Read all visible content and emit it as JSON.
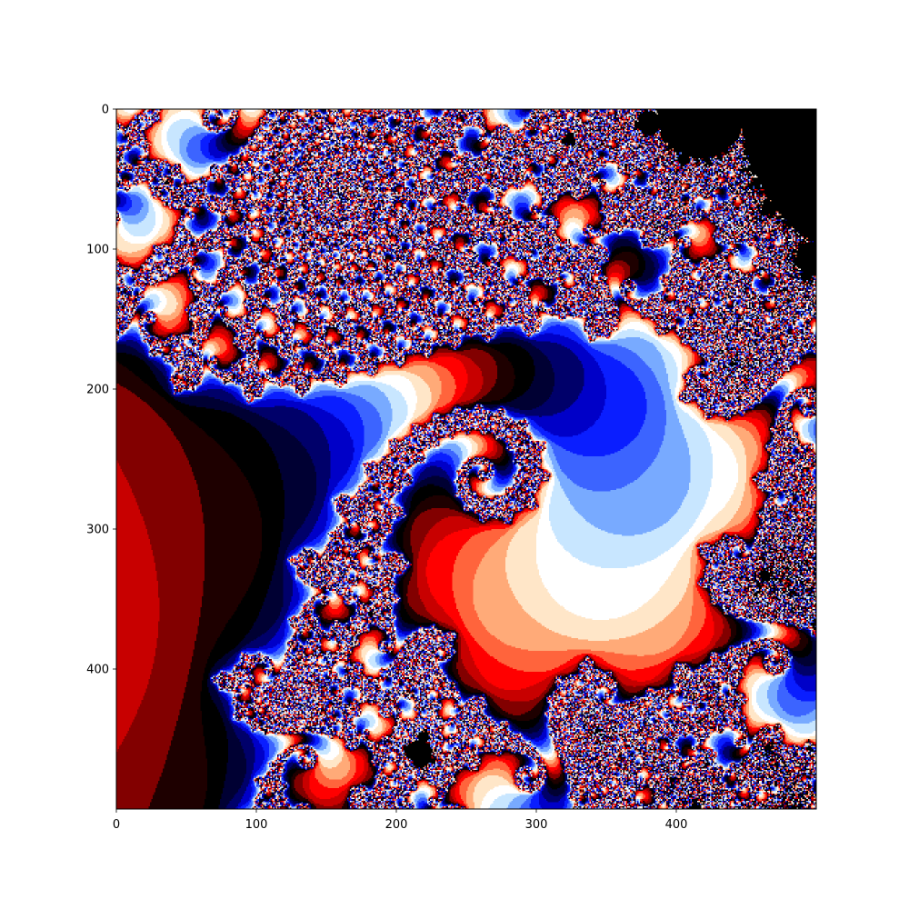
{
  "chart_data": {
    "type": "heatmap",
    "title": "",
    "xlabel": "",
    "ylabel": "",
    "xlim": [
      0,
      500
    ],
    "ylim": [
      500,
      0
    ],
    "x_ticks": [
      0,
      100,
      200,
      300,
      400
    ],
    "y_ticks": [
      0,
      100,
      200,
      300,
      400
    ],
    "x_tick_labels": [
      "0",
      "100",
      "200",
      "300",
      "400"
    ],
    "y_tick_labels": [
      "0",
      "100",
      "200",
      "300",
      "400"
    ],
    "grid": false,
    "image_size": [
      500,
      500
    ],
    "colormap": "seismic (banded)",
    "color_bands": [
      "#1e0000",
      "#000000",
      "#000033",
      "#00006a",
      "#0000c8",
      "#0a1eff",
      "#3c64ff",
      "#78aaff",
      "#c8e6ff",
      "#ffffff",
      "#ffe6c8",
      "#ffaa78",
      "#ff643c",
      "#ff0000",
      "#c80000",
      "#820000"
    ],
    "description": "Spiral fractal (Mandelbrot zoom) colored by escape iteration"
  }
}
